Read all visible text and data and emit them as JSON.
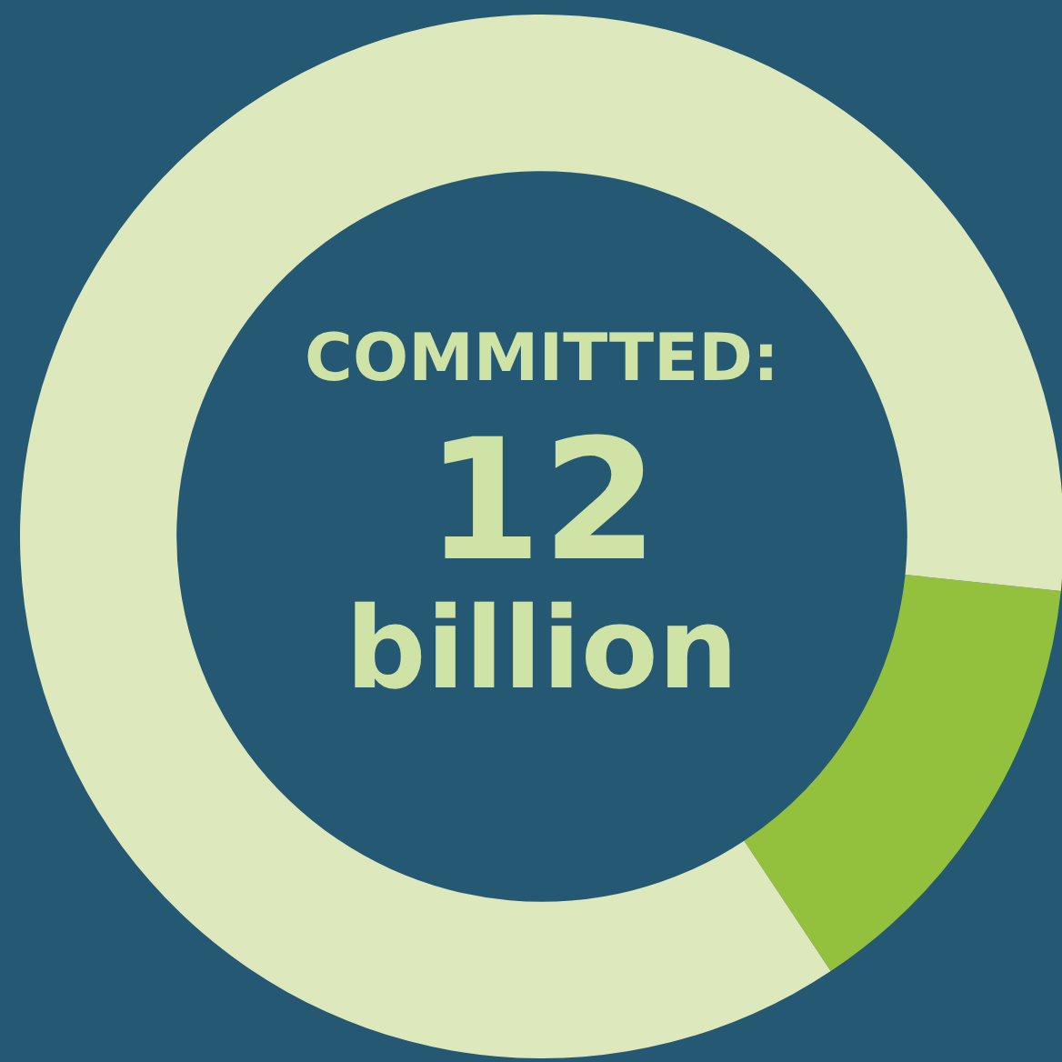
{
  "chart_data": {
    "type": "donut",
    "categories": [
      null,
      null
    ],
    "values": [
      14,
      86
    ],
    "colors": [
      "#93c13e",
      "#dde8bd"
    ],
    "legend": false,
    "annotations": [
      "COMMITTED:",
      "12",
      "billion"
    ]
  }
}
